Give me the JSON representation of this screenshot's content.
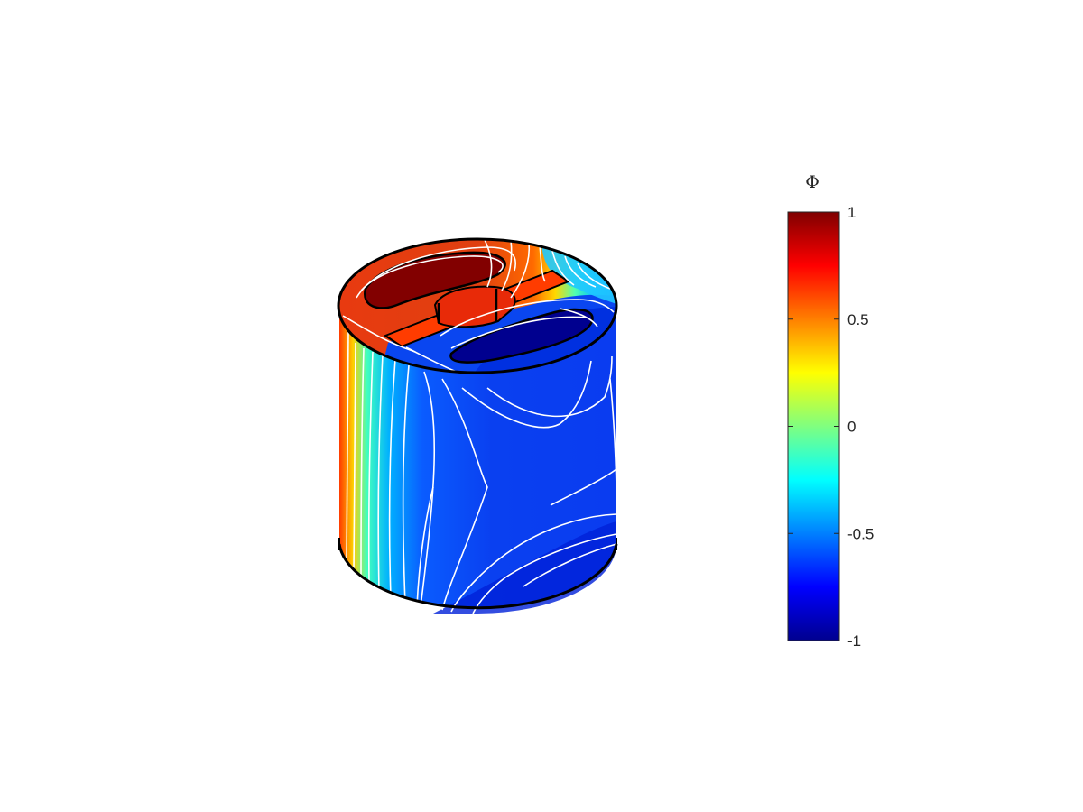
{
  "chart_data": {
    "type": "heatmap",
    "plot_kind": "3d surface potential on cylinder with contour lines",
    "colormap": "jet",
    "colorbar": {
      "title": "Φ",
      "clim": [
        -1,
        1
      ],
      "ticks": [
        1,
        0.5,
        0,
        -0.5,
        -1
      ],
      "tick_labels": [
        "1",
        "0.5",
        "0",
        "-0.5",
        "-1"
      ]
    },
    "contour_color": "#ffffff",
    "edge_color": "#000000",
    "surface_field": {
      "top_face_left_region": 0.85,
      "top_face_upper_slot": 1.0,
      "top_face_lower_slot": -1.0,
      "side_left_edge": 0.75,
      "side_body": -0.7,
      "side_bottom_right": -0.85
    }
  }
}
